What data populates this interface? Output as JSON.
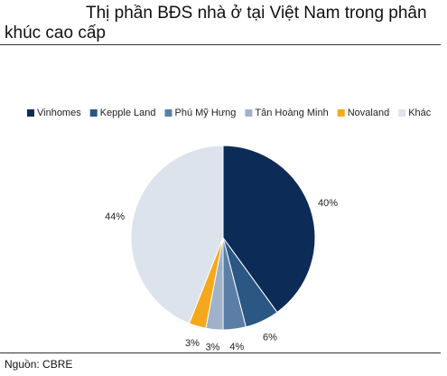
{
  "chart_data": {
    "type": "pie",
    "title": "Thị phần BĐS nhà ở tại Việt Nam trong phân khúc cao cấp",
    "categories": [
      "Vinhomes",
      "Kepple Land",
      "Phú Mỹ Hưng",
      "Tân Hoàng Minh",
      "Novaland",
      "Khác"
    ],
    "values": [
      40,
      6,
      4,
      3,
      3,
      44
    ],
    "value_labels": [
      "40%",
      "6%",
      "4%",
      "3%",
      "3%",
      "44%"
    ],
    "colors": [
      "#0d2b57",
      "#2a5783",
      "#5a7ea6",
      "#9fb2c9",
      "#f5a81c",
      "#dce3ed"
    ],
    "legend": "top",
    "source": "Nguồn: CBRE"
  }
}
